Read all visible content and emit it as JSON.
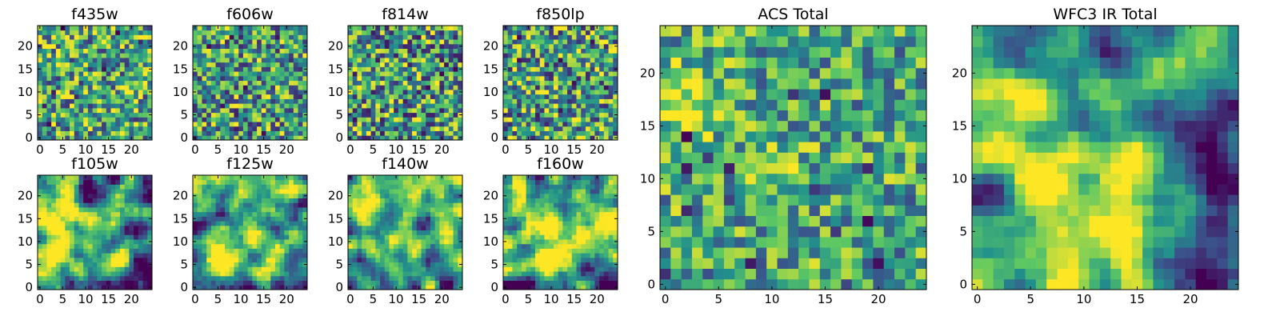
{
  "figure": {
    "background": "#ffffff"
  },
  "colormap": {
    "name": "viridis",
    "stops": [
      "#440154",
      "#3b528b",
      "#21918c",
      "#5ec962",
      "#fde725"
    ]
  },
  "chart_data": [
    {
      "id": "f435w",
      "type": "heatmap",
      "title": "f435w",
      "grid_size": 25,
      "xlim": [
        -0.5,
        24.5
      ],
      "ylim": [
        -0.5,
        24.5
      ],
      "xticks": [
        0,
        5,
        10,
        15,
        20
      ],
      "yticks": [
        0,
        5,
        10,
        15,
        20
      ],
      "texture": "noise",
      "mean": 0.6,
      "spread": 0.55,
      "seed": 11,
      "hotspots": []
    },
    {
      "id": "f606w",
      "type": "heatmap",
      "title": "f606w",
      "grid_size": 25,
      "xlim": [
        -0.5,
        24.5
      ],
      "ylim": [
        -0.5,
        24.5
      ],
      "xticks": [
        0,
        5,
        10,
        15,
        20
      ],
      "yticks": [
        0,
        5,
        10,
        15,
        20
      ],
      "texture": "noise",
      "mean": 0.57,
      "spread": 0.55,
      "seed": 23,
      "hotspots": []
    },
    {
      "id": "f814w",
      "type": "heatmap",
      "title": "f814w",
      "grid_size": 25,
      "xlim": [
        -0.5,
        24.5
      ],
      "ylim": [
        -0.5,
        24.5
      ],
      "xticks": [
        0,
        5,
        10,
        15,
        20
      ],
      "yticks": [
        0,
        5,
        10,
        15,
        20
      ],
      "texture": "noise",
      "mean": 0.55,
      "spread": 0.6,
      "seed": 37,
      "hotspots": []
    },
    {
      "id": "f850lp",
      "type": "heatmap",
      "title": "f850lp",
      "grid_size": 25,
      "xlim": [
        -0.5,
        24.5
      ],
      "ylim": [
        -0.5,
        24.5
      ],
      "xticks": [
        0,
        5,
        10,
        15,
        20
      ],
      "yticks": [
        0,
        5,
        10,
        15,
        20
      ],
      "texture": "noise",
      "mean": 0.57,
      "spread": 0.58,
      "seed": 41,
      "hotspots": []
    },
    {
      "id": "f105w",
      "type": "heatmap",
      "title": "f105w",
      "grid_size": 25,
      "xlim": [
        -0.5,
        24.5
      ],
      "ylim": [
        -0.5,
        24.5
      ],
      "xticks": [
        0,
        5,
        10,
        15,
        20
      ],
      "yticks": [
        0,
        5,
        10,
        15,
        20
      ],
      "texture": "smooth",
      "mean": 0.62,
      "spread": 0.45,
      "seed": 53,
      "hotspots": [
        {
          "x": 2,
          "y": 16,
          "radius": 3,
          "amp": 0.3
        },
        {
          "x": 23,
          "y": 3,
          "radius": 2.5,
          "amp": -0.3
        }
      ]
    },
    {
      "id": "f125w",
      "type": "heatmap",
      "title": "f125w",
      "grid_size": 25,
      "xlim": [
        -0.5,
        24.5
      ],
      "ylim": [
        -0.5,
        24.5
      ],
      "xticks": [
        0,
        5,
        10,
        15,
        20
      ],
      "yticks": [
        0,
        5,
        10,
        15,
        20
      ],
      "texture": "smooth",
      "mean": 0.64,
      "spread": 0.45,
      "seed": 67,
      "hotspots": [
        {
          "x": 2,
          "y": 18,
          "radius": 3,
          "amp": 0.25
        },
        {
          "x": 10,
          "y": 11,
          "radius": 2.5,
          "amp": 0.25
        },
        {
          "x": 23,
          "y": 3,
          "radius": 2.5,
          "amp": -0.3
        }
      ]
    },
    {
      "id": "f140w",
      "type": "heatmap",
      "title": "f140w",
      "grid_size": 25,
      "xlim": [
        -0.5,
        24.5
      ],
      "ylim": [
        -0.5,
        24.5
      ],
      "xticks": [
        0,
        5,
        10,
        15,
        20
      ],
      "yticks": [
        0,
        5,
        10,
        15,
        20
      ],
      "texture": "smooth",
      "mean": 0.64,
      "spread": 0.4,
      "seed": 79,
      "hotspots": [
        {
          "x": 2,
          "y": 18,
          "radius": 3.5,
          "amp": 0.3
        },
        {
          "x": 10,
          "y": 11,
          "radius": 2.5,
          "amp": 0.25
        },
        {
          "x": 23,
          "y": 2,
          "radius": 3,
          "amp": -0.4
        }
      ]
    },
    {
      "id": "f160w",
      "type": "heatmap",
      "title": "f160w",
      "grid_size": 25,
      "xlim": [
        -0.5,
        24.5
      ],
      "ylim": [
        -0.5,
        24.5
      ],
      "xticks": [
        0,
        5,
        10,
        15,
        20
      ],
      "yticks": [
        0,
        5,
        10,
        15,
        20
      ],
      "texture": "smooth",
      "mean": 0.62,
      "spread": 0.45,
      "seed": 97,
      "hotspots": [
        {
          "x": 2,
          "y": 18,
          "radius": 3,
          "amp": 0.3
        },
        {
          "x": 10,
          "y": 11,
          "radius": 2.5,
          "amp": 0.3
        },
        {
          "x": 23,
          "y": 2,
          "radius": 3,
          "amp": -0.5
        },
        {
          "x": 22,
          "y": 18,
          "radius": 2.5,
          "amp": -0.2
        }
      ]
    },
    {
      "id": "acs-total",
      "type": "heatmap",
      "title": "ACS Total",
      "grid_size": 25,
      "xlim": [
        -0.5,
        24.5
      ],
      "ylim": [
        -0.5,
        24.5
      ],
      "xticks": [
        0,
        5,
        10,
        15,
        20
      ],
      "yticks": [
        0,
        5,
        10,
        15,
        20
      ],
      "texture": "noise",
      "mean": 0.6,
      "spread": 0.45,
      "seed": 131,
      "hotspots": [
        {
          "x": 2,
          "y": 17,
          "radius": 2,
          "amp": 0.35
        },
        {
          "x": 11,
          "y": 11,
          "radius": 1.5,
          "amp": 0.3
        }
      ]
    },
    {
      "id": "wfc3-ir-total",
      "type": "heatmap",
      "title": "WFC3 IR Total",
      "grid_size": 25,
      "xlim": [
        -0.5,
        24.5
      ],
      "ylim": [
        -0.5,
        24.5
      ],
      "xticks": [
        0,
        5,
        10,
        15,
        20
      ],
      "yticks": [
        0,
        5,
        10,
        15,
        20
      ],
      "texture": "smooth",
      "mean": 0.62,
      "spread": 0.35,
      "seed": 151,
      "hotspots": [
        {
          "x": 2,
          "y": 17,
          "radius": 3,
          "amp": 0.35
        },
        {
          "x": 11,
          "y": 11,
          "radius": 2,
          "amp": 0.3
        },
        {
          "x": 23,
          "y": 2,
          "radius": 3,
          "amp": -0.6
        },
        {
          "x": 23,
          "y": 9,
          "radius": 2.5,
          "amp": -0.4
        },
        {
          "x": 19,
          "y": 14,
          "radius": 3,
          "amp": -0.2
        }
      ]
    }
  ]
}
